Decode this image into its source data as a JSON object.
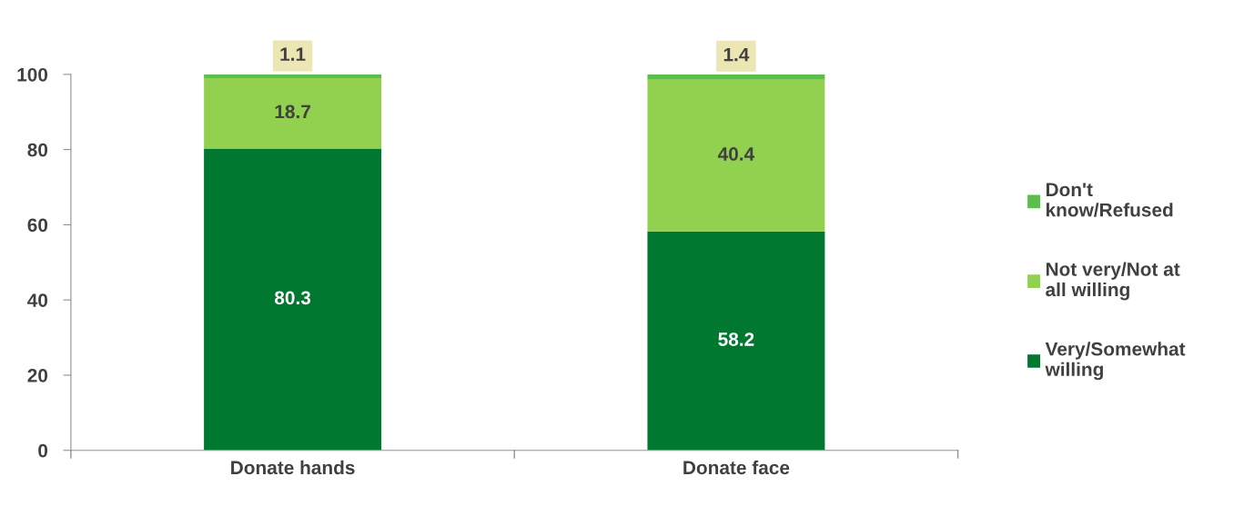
{
  "chart_data": {
    "type": "bar",
    "stacked": true,
    "categories": [
      "Donate hands",
      "Donate face"
    ],
    "series": [
      {
        "name": "Very/Somewhat willing",
        "color": "#00782f",
        "values": [
          80.3,
          58.2
        ]
      },
      {
        "name": "Not very/Not at all willing",
        "color": "#92d050",
        "values": [
          18.7,
          40.4
        ]
      },
      {
        "name": "Don't know/Refused",
        "color": "#5cbf4a",
        "values": [
          1.1,
          1.4
        ]
      }
    ],
    "ylim": [
      0,
      100
    ],
    "yticks": [
      0,
      20,
      40,
      60,
      80,
      100
    ],
    "data_labels": true,
    "grid": false,
    "legend": "right"
  }
}
